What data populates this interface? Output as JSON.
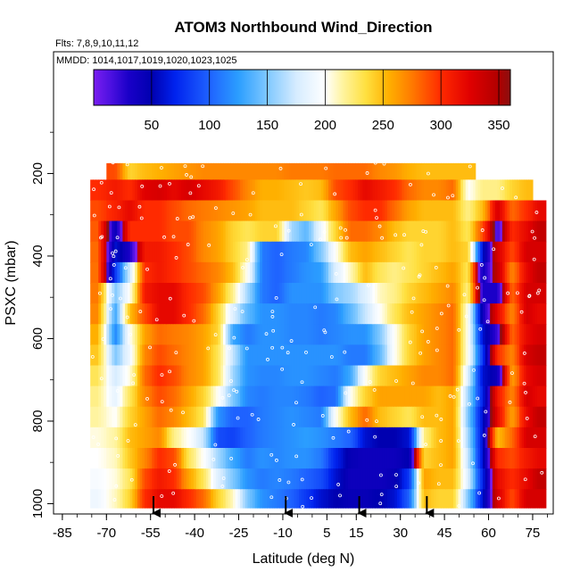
{
  "chart_data": {
    "type": "heatmap",
    "title": "ATOM3 Northbound Wind_Direction",
    "flights_note": "Flts: 7,8,9,10,11,12",
    "dates_note": "MMDD: 1014,1017,1019,1020,1023,1025",
    "xlabel": "Latitude (deg N)",
    "ylabel": "PSXC (mbar)",
    "x_ticks": [
      -85,
      -70,
      -55,
      -40,
      -25,
      -10,
      5,
      15,
      30,
      45,
      60,
      75
    ],
    "x_tick_labels": [
      "-85",
      "-70",
      "-55",
      "-40",
      "-25",
      "-10",
      "5",
      "15",
      "30",
      "45",
      "60",
      "75"
    ],
    "xlim": [
      -88,
      82
    ],
    "y_ticks": [
      200,
      400,
      600,
      800,
      1000
    ],
    "y_tick_labels": [
      "200",
      "400",
      "600",
      "800",
      "1000"
    ],
    "ylim": [
      1025,
      -95
    ],
    "colorbar": {
      "range": [
        0,
        360
      ],
      "ticks": [
        50,
        100,
        150,
        200,
        250,
        300,
        350
      ],
      "tick_labels": [
        "50",
        "100",
        "150",
        "200",
        "250",
        "300",
        "350"
      ],
      "colormap": [
        {
          "v": 0,
          "c": "#7a1ef0"
        },
        {
          "v": 15,
          "c": "#4b10e0"
        },
        {
          "v": 30,
          "c": "#1a00c8"
        },
        {
          "v": 50,
          "c": "#0000b0"
        },
        {
          "v": 70,
          "c": "#0022ee"
        },
        {
          "v": 100,
          "c": "#1f62ff"
        },
        {
          "v": 125,
          "c": "#2b9eff"
        },
        {
          "v": 150,
          "c": "#7fc8ff"
        },
        {
          "v": 175,
          "c": "#d6ecff"
        },
        {
          "v": 200,
          "c": "#ffffff"
        },
        {
          "v": 215,
          "c": "#fff4a0"
        },
        {
          "v": 235,
          "c": "#ffe040"
        },
        {
          "v": 255,
          "c": "#ffb000"
        },
        {
          "v": 275,
          "c": "#ff7a00"
        },
        {
          "v": 300,
          "c": "#ff2a00"
        },
        {
          "v": 325,
          "c": "#e00000"
        },
        {
          "v": 350,
          "c": "#b00000"
        },
        {
          "v": 360,
          "c": "#8a1010"
        }
      ]
    },
    "data_grid": {
      "pressure_levels": [
        190,
        240,
        290,
        340,
        390,
        440,
        490,
        540,
        590,
        640,
        690,
        740,
        790,
        840,
        890,
        940,
        990
      ],
      "top_pressure": 175,
      "bottom_pressure": 1010,
      "segments": [
        {
          "lat": -73,
          "values": [
            null,
            300,
            290,
            285,
            280,
            278,
            275,
            270,
            255,
            245,
            230,
            220,
            215,
            205,
            200,
            195,
            190
          ]
        },
        {
          "lat": -67,
          "values": [
            290,
            310,
            305,
            45,
            60,
            80,
            150,
            130,
            115,
            150,
            175,
            185,
            200,
            215,
            210,
            205,
            210
          ]
        },
        {
          "lat": -62,
          "values": [
            240,
            300,
            320,
            300,
            30,
            175,
            200,
            250,
            200,
            190,
            205,
            230,
            240,
            250,
            245,
            230,
            240
          ]
        },
        {
          "lat": -57,
          "values": [
            250,
            325,
            300,
            300,
            310,
            300,
            310,
            290,
            260,
            270,
            280,
            270,
            260,
            260,
            270,
            290,
            300
          ]
        },
        {
          "lat": -52,
          "values": [
            255,
            330,
            300,
            300,
            310,
            310,
            320,
            320,
            280,
            290,
            300,
            290,
            280,
            270,
            300,
            310,
            320
          ]
        },
        {
          "lat": -47,
          "values": [
            260,
            320,
            290,
            290,
            300,
            300,
            320,
            320,
            275,
            280,
            290,
            280,
            270,
            220,
            290,
            300,
            320
          ]
        },
        {
          "lat": -42,
          "values": [
            265,
            330,
            280,
            290,
            290,
            290,
            300,
            300,
            270,
            270,
            270,
            260,
            250,
            200,
            230,
            260,
            300
          ]
        },
        {
          "lat": -37,
          "values": [
            270,
            320,
            275,
            270,
            270,
            280,
            290,
            280,
            260,
            260,
            260,
            240,
            230,
            170,
            200,
            230,
            280
          ]
        },
        {
          "lat": -32,
          "values": [
            270,
            310,
            270,
            260,
            260,
            270,
            260,
            240,
            240,
            230,
            230,
            200,
            120,
            90,
            160,
            180,
            240
          ]
        },
        {
          "lat": -27,
          "values": [
            270,
            290,
            265,
            240,
            240,
            250,
            220,
            180,
            130,
            170,
            160,
            150,
            100,
            85,
            130,
            150,
            210
          ]
        },
        {
          "lat": -22,
          "values": [
            270,
            270,
            260,
            230,
            220,
            200,
            160,
            140,
            110,
            120,
            120,
            115,
            100,
            100,
            110,
            120,
            150
          ]
        },
        {
          "lat": -17,
          "values": [
            270,
            255,
            250,
            240,
            110,
            110,
            110,
            120,
            120,
            120,
            115,
            110,
            110,
            110,
            120,
            110,
            120
          ]
        },
        {
          "lat": -12,
          "values": [
            270,
            255,
            250,
            240,
            100,
            100,
            100,
            120,
            120,
            120,
            115,
            115,
            115,
            115,
            115,
            115,
            110
          ]
        },
        {
          "lat": -7,
          "values": [
            275,
            250,
            250,
            160,
            110,
            110,
            120,
            115,
            115,
            120,
            120,
            115,
            120,
            120,
            120,
            110,
            100
          ]
        },
        {
          "lat": -2,
          "values": [
            275,
            245,
            240,
            140,
            115,
            120,
            120,
            115,
            115,
            120,
            120,
            110,
            115,
            125,
            120,
            100,
            80
          ]
        },
        {
          "lat": 3,
          "values": [
            275,
            250,
            230,
            190,
            150,
            125,
            120,
            110,
            110,
            120,
            115,
            100,
            110,
            120,
            110,
            90,
            60
          ]
        },
        {
          "lat": 8,
          "values": [
            280,
            290,
            260,
            240,
            200,
            180,
            150,
            115,
            115,
            120,
            110,
            105,
            200,
            110,
            70,
            60,
            50
          ]
        },
        {
          "lat": 13,
          "values": [
            280,
            300,
            290,
            280,
            250,
            210,
            160,
            140,
            120,
            110,
            130,
            200,
            250,
            100,
            45,
            40,
            45
          ]
        },
        {
          "lat": 18,
          "values": [
            280,
            320,
            300,
            280,
            260,
            250,
            180,
            170,
            120,
            110,
            200,
            240,
            280,
            60,
            40,
            40,
            45
          ]
        },
        {
          "lat": 23,
          "values": [
            270,
            310,
            300,
            270,
            250,
            230,
            210,
            200,
            150,
            140,
            240,
            260,
            250,
            50,
            40,
            40,
            50
          ]
        },
        {
          "lat": 28,
          "values": [
            265,
            300,
            280,
            250,
            240,
            220,
            220,
            230,
            200,
            200,
            250,
            260,
            240,
            50,
            40,
            45,
            60
          ]
        },
        {
          "lat": 33,
          "values": [
            255,
            280,
            260,
            240,
            230,
            230,
            240,
            250,
            240,
            240,
            260,
            260,
            230,
            60,
            50,
            80,
            100
          ]
        },
        {
          "lat": 38,
          "values": [
            250,
            270,
            250,
            240,
            240,
            240,
            250,
            260,
            260,
            260,
            270,
            260,
            250,
            220,
            240,
            260,
            250
          ]
        },
        {
          "lat": 43,
          "values": [
            250,
            270,
            250,
            240,
            240,
            250,
            260,
            270,
            270,
            270,
            270,
            250,
            250,
            250,
            250,
            250,
            240
          ]
        },
        {
          "lat": 48,
          "values": [
            250,
            280,
            250,
            250,
            250,
            260,
            270,
            280,
            280,
            280,
            280,
            260,
            260,
            260,
            260,
            250,
            240
          ]
        },
        {
          "lat": 53,
          "values": [
            250,
            200,
            220,
            230,
            240,
            230,
            220,
            200,
            200,
            200,
            180,
            160,
            150,
            160,
            170,
            180,
            150
          ]
        },
        {
          "lat": 58,
          "values": [
            null,
            220,
            250,
            290,
            60,
            40,
            30,
            40,
            60,
            80,
            60,
            70,
            60,
            60,
            60,
            70,
            60
          ]
        },
        {
          "lat": 63,
          "values": [
            null,
            220,
            330,
            20,
            330,
            340,
            30,
            320,
            20,
            300,
            40,
            310,
            320,
            250,
            300,
            320,
            330
          ]
        },
        {
          "lat": 68,
          "values": [
            null,
            240,
            280,
            300,
            290,
            270,
            280,
            270,
            280,
            270,
            260,
            270,
            260,
            280,
            290,
            300,
            290
          ]
        },
        {
          "lat": 73,
          "values": [
            null,
            250,
            300,
            320,
            330,
            320,
            330,
            330,
            320,
            330,
            320,
            330,
            320,
            330,
            310,
            320,
            330
          ]
        },
        {
          "lat": 77,
          "values": [
            null,
            null,
            320,
            340,
            330,
            340,
            330,
            320,
            330,
            340,
            330,
            320,
            340,
            330,
            320,
            340,
            330
          ]
        }
      ]
    },
    "markers": {
      "arrow_latitudes": [
        -54,
        -9,
        16,
        39
      ]
    }
  }
}
